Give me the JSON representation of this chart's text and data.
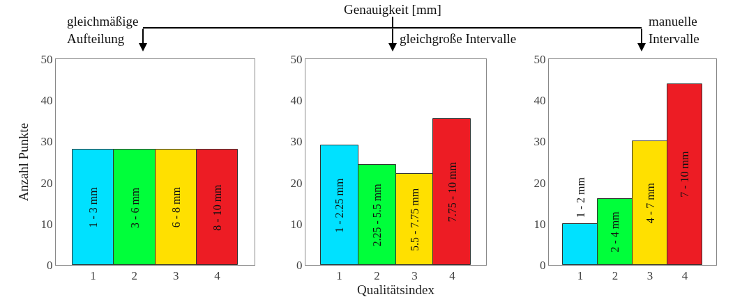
{
  "chart_data": [
    {
      "type": "bar",
      "subtitle": "gleichmäßige\nAufteilung",
      "ylabel": "Anzahl Punkte",
      "categories": [
        "1",
        "2",
        "3",
        "4"
      ],
      "values": [
        28,
        28,
        28,
        28
      ],
      "colors": [
        "#00e1ff",
        "#00ff3a",
        "#ffe000",
        "#ed1c24"
      ],
      "ylim": [
        0,
        50
      ],
      "yticks": [
        0,
        10,
        20,
        30,
        40,
        50
      ],
      "annotations": [
        "1 - 3 mm",
        "3 - 6 mm",
        "6 - 8 mm",
        "8 - 10 mm"
      ]
    },
    {
      "type": "bar",
      "title": "Genauigkeit [mm]",
      "subtitle": "gleichgroße Intervalle",
      "xlabel": "Qualitätsindex",
      "categories": [
        "1",
        "2",
        "3",
        "4"
      ],
      "values": [
        29,
        24.3,
        22.1,
        35.5
      ],
      "colors": [
        "#00e1ff",
        "#00ff3a",
        "#ffe000",
        "#ed1c24"
      ],
      "ylim": [
        0,
        50
      ],
      "yticks": [
        0,
        10,
        20,
        30,
        40,
        50
      ],
      "annotations": [
        "1 - 2.25 mm",
        "2.25 - 5.5 mm",
        "5.5 - 7.75 mm",
        "7.75 - 10 mm"
      ]
    },
    {
      "type": "bar",
      "subtitle": "manuelle\nIntervalle",
      "categories": [
        "1",
        "2",
        "3",
        "4"
      ],
      "values": [
        10,
        16,
        30,
        44
      ],
      "colors": [
        "#00e1ff",
        "#00ff3a",
        "#ffe000",
        "#ed1c24"
      ],
      "ylim": [
        0,
        50
      ],
      "yticks": [
        0,
        10,
        20,
        30,
        40,
        50
      ],
      "annotations": [
        "1 - 2 mm",
        "2 - 4 mm",
        "4 - 7 mm",
        "7 - 10 mm"
      ]
    }
  ]
}
